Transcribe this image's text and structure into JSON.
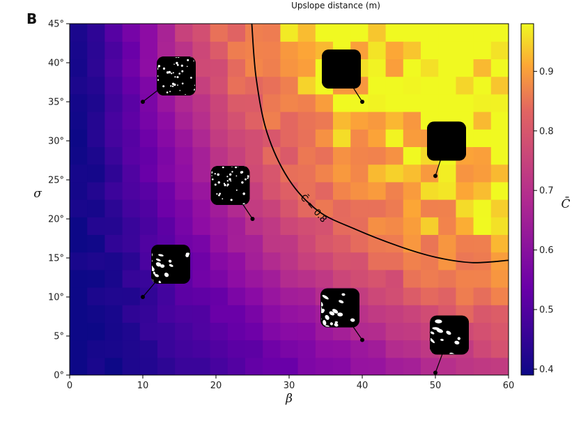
{
  "panel_label": "B",
  "top_label": "Upslope distance (m)",
  "chart_data": {
    "type": "heatmap",
    "xlabel": "β",
    "ylabel": "σ",
    "colorbar_label": "C̄",
    "xlim": [
      0,
      60
    ],
    "ylim": [
      0,
      45
    ],
    "x_ticks": [
      0,
      10,
      20,
      30,
      40,
      50,
      60
    ],
    "x_tick_labels": [
      "0",
      "10",
      "20",
      "30",
      "40",
      "50",
      "60"
    ],
    "y_ticks": [
      0,
      5,
      10,
      15,
      20,
      25,
      30,
      35,
      40,
      45
    ],
    "y_tick_labels": [
      "0°",
      "5°",
      "10°",
      "15°",
      "20°",
      "25°",
      "30°",
      "35°",
      "40°",
      "45°"
    ],
    "colorbar_range": [
      0.39,
      0.98
    ],
    "colorbar_ticks": [
      0.4,
      0.5,
      0.6,
      0.7,
      0.8,
      0.9
    ],
    "colorbar_tick_labels": [
      "0.4",
      "0.5",
      "0.6",
      "0.7",
      "0.8",
      "0.9"
    ],
    "colormap": "plasma",
    "grid_cols": 25,
    "grid_rows": 20,
    "grid_x_step": 2.4,
    "grid_y_step": 2.25,
    "grid_description": "Mean connectivity C̄ rises with both β and σ: ~0.40 near β=0, ~0.55 along σ≈0, and ~0.90–0.98 for β>35, σ>20, with patchy noise at high values.",
    "contour": {
      "label": "C̄ = 0.8",
      "level": 0.8,
      "points": [
        [
          24.9,
          45
        ],
        [
          25.5,
          38
        ],
        [
          27,
          31
        ],
        [
          30,
          25
        ],
        [
          34,
          21
        ],
        [
          39,
          18.7
        ],
        [
          45,
          16.5
        ],
        [
          50,
          15.1
        ],
        [
          55,
          14.4
        ],
        [
          60,
          14.7
        ]
      ]
    },
    "samples": [
      {
        "beta": 10,
        "sigma": 35,
        "pattern": "sparse-rough"
      },
      {
        "beta": 25,
        "sigma": 20,
        "pattern": "wavy-stripes"
      },
      {
        "beta": 10,
        "sigma": 10,
        "pattern": "spots"
      },
      {
        "beta": 40,
        "sigma": 35,
        "pattern": "fine-stripes"
      },
      {
        "beta": 50,
        "sigma": 25.5,
        "pattern": "regular-stripes"
      },
      {
        "beta": 40,
        "sigma": 4.5,
        "pattern": "dense-spots"
      },
      {
        "beta": 50,
        "sigma": 0.3,
        "pattern": "dense-spots"
      }
    ]
  }
}
